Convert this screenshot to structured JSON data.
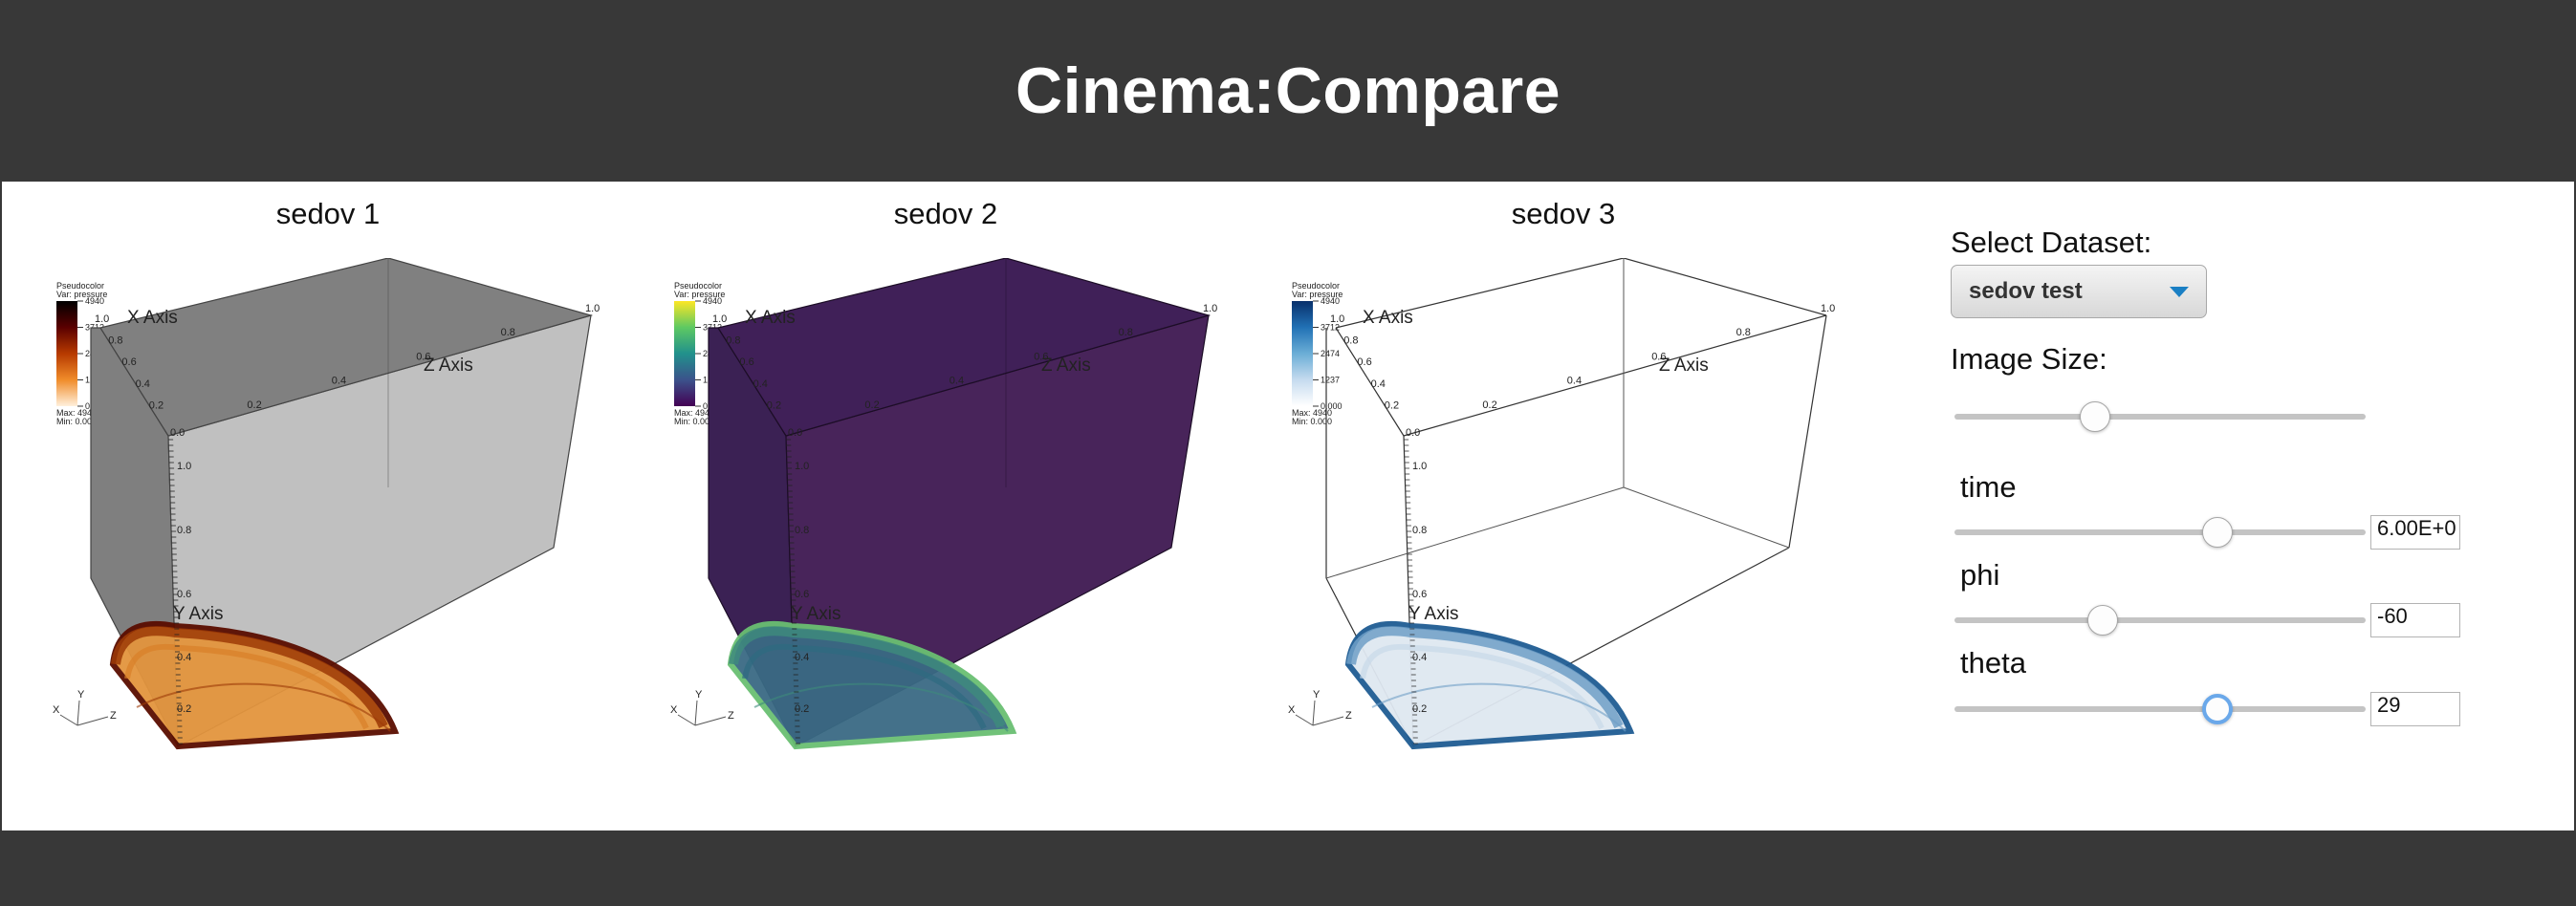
{
  "app": {
    "title": "Cinema:Compare"
  },
  "views": [
    {
      "title": "sedov 1",
      "colormap": "orange",
      "legend": {
        "label1": "Pseudocolor",
        "label2": "Var: pressure",
        "ticks": [
          "4940",
          "3712",
          "2474",
          "1237",
          "0.000"
        ],
        "max": "Max: 4940",
        "min": "Min: 0.000"
      }
    },
    {
      "title": "sedov 2",
      "colormap": "viridis",
      "legend": {
        "label1": "Pseudocolor",
        "label2": "Var: pressure",
        "ticks": [
          "4940",
          "3712",
          "2474",
          "1237",
          "0.000"
        ],
        "max": "Max: 4940",
        "min": "Min: 0.000"
      }
    },
    {
      "title": "sedov 3",
      "colormap": "blue",
      "legend": {
        "label1": "Pseudocolor",
        "label2": "Var: pressure",
        "ticks": [
          "4940",
          "3712",
          "2474",
          "1237",
          "0.000"
        ],
        "max": "Max: 4940",
        "min": "Min: 0.000"
      }
    }
  ],
  "axes": {
    "x_title": "X Axis",
    "y_title": "Y Axis",
    "z_title": "Z Axis",
    "x_ticks": [
      "1.0",
      "0.8",
      "0.6",
      "0.4",
      "0.2",
      "0.0"
    ],
    "z_ticks": [
      "0.0",
      "0.2",
      "0.4",
      "0.6",
      "0.8",
      "1.0"
    ],
    "y_ticks": [
      "1.0",
      "0.8",
      "0.6",
      "0.4",
      "0.2"
    ],
    "triad": {
      "x": "X",
      "y": "Y",
      "z": "Z"
    }
  },
  "controls": {
    "dataset_label": "Select Dataset:",
    "dataset_value": "sedov test",
    "image_size_label": "Image Size:",
    "image_size_position": 0.33,
    "params": [
      {
        "label": "time",
        "value": "6.00E+0",
        "position": 0.65
      },
      {
        "label": "phi",
        "value": "-60",
        "position": 0.35
      },
      {
        "label": "theta",
        "value": "29",
        "position": 0.65
      }
    ]
  },
  "colors": {
    "header_bg": "#383838",
    "accent": "#1a7fc4"
  }
}
